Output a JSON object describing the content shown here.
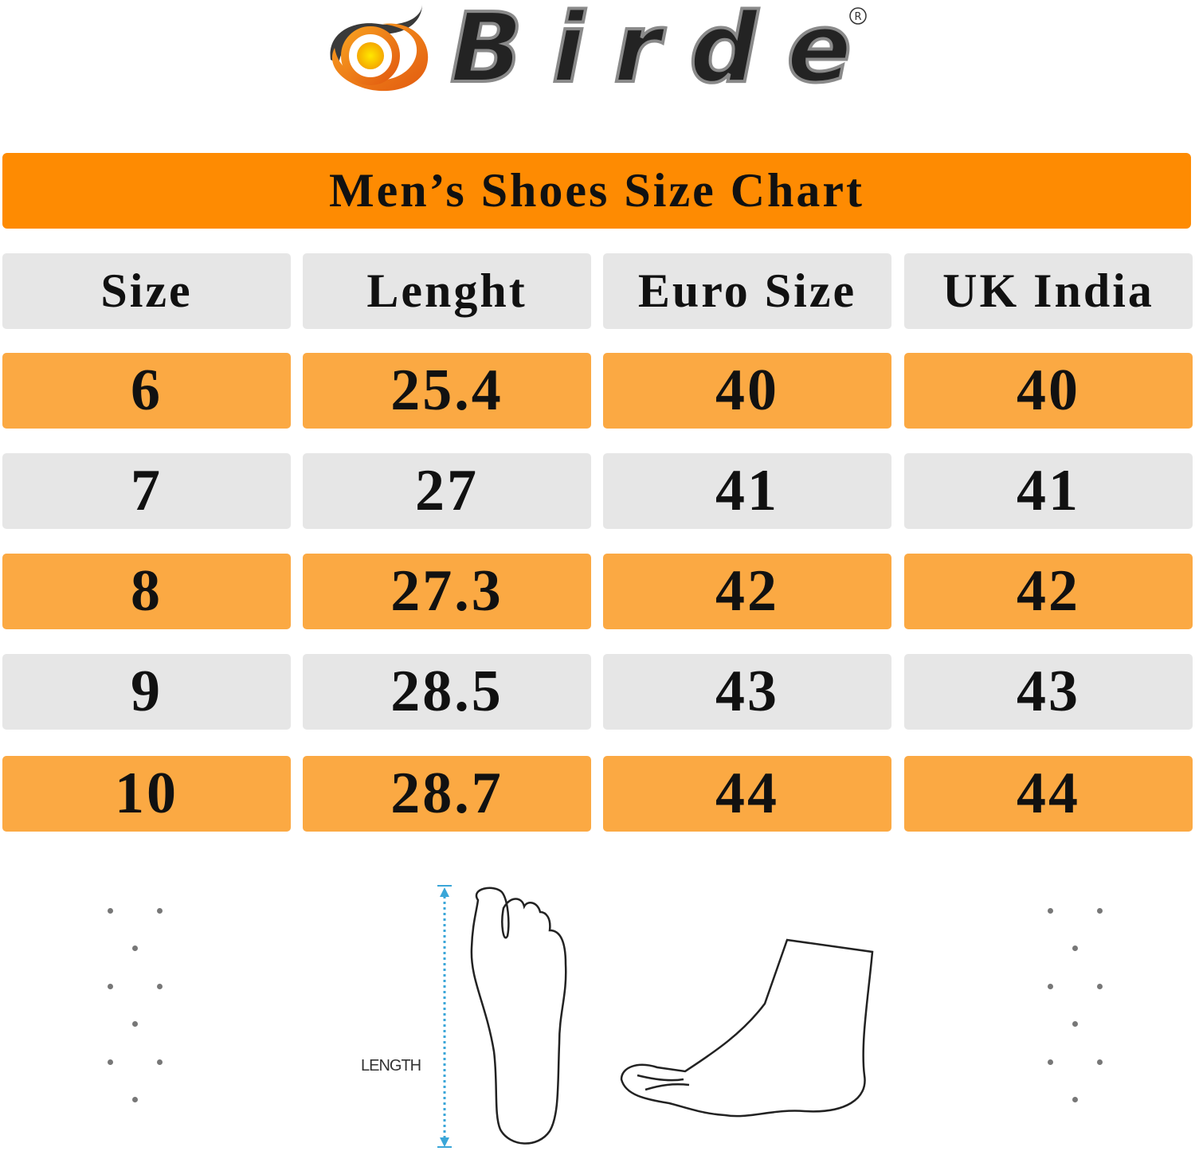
{
  "brand": {
    "name": "Birde",
    "registered_mark": "®",
    "colors": {
      "orange": "#F07A12",
      "yellow": "#FFD000",
      "dark": "#2A2A2A"
    }
  },
  "title": "Men’s Shoes Size Chart",
  "colors": {
    "title_bar": "#FE8B02",
    "orange_row": "#FBA943",
    "gray_row": "#E6E6E6"
  },
  "table": {
    "headers": [
      "Size",
      "Lenght",
      "Euro Size",
      "UK India"
    ],
    "rows": [
      [
        "6",
        "25.4",
        "40",
        "40"
      ],
      [
        "7",
        "27",
        "41",
        "41"
      ],
      [
        "8",
        "27.3",
        "42",
        "42"
      ],
      [
        "9",
        "28.5",
        "43",
        "43"
      ],
      [
        "10",
        "28.7",
        "44",
        "44"
      ]
    ]
  },
  "illustration": {
    "length_label": "LENGTH",
    "icons": [
      "foot-sole-icon",
      "foot-side-icon",
      "length-arrow-icon"
    ]
  }
}
